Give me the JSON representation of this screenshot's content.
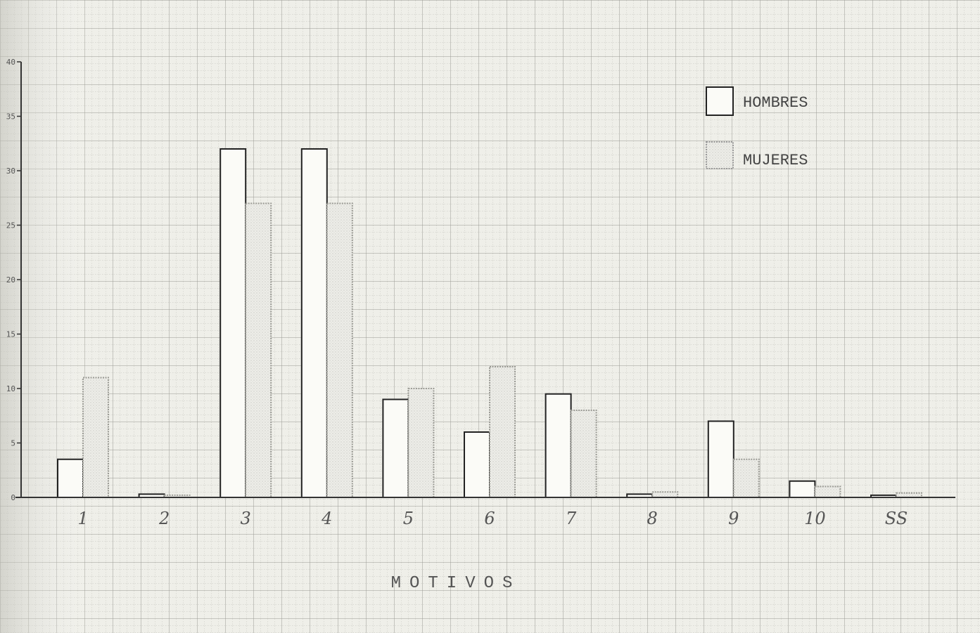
{
  "chart_data": {
    "type": "bar",
    "categories": [
      "1",
      "2",
      "3",
      "4",
      "5",
      "6",
      "7",
      "8",
      "9",
      "10",
      "SS"
    ],
    "series": [
      {
        "name": "HOMBRES",
        "values": [
          3.5,
          0.3,
          32,
          32,
          9,
          6,
          9.5,
          0.3,
          7,
          1.5,
          0.2
        ],
        "color": "#fbfbf7"
      },
      {
        "name": "MUJERES",
        "values": [
          11,
          0.2,
          27,
          27,
          10,
          12,
          8,
          0.5,
          3.5,
          1,
          0.4
        ],
        "color": "#e9e9e4"
      }
    ],
    "xlabel": "MOTIVOS",
    "ylabel": "",
    "ylim": [
      0,
      40
    ],
    "yticks": [
      "0",
      "5",
      "10",
      "15",
      "20",
      "25",
      "30",
      "35",
      "40"
    ],
    "grid": true,
    "legend_position": "top-right"
  }
}
